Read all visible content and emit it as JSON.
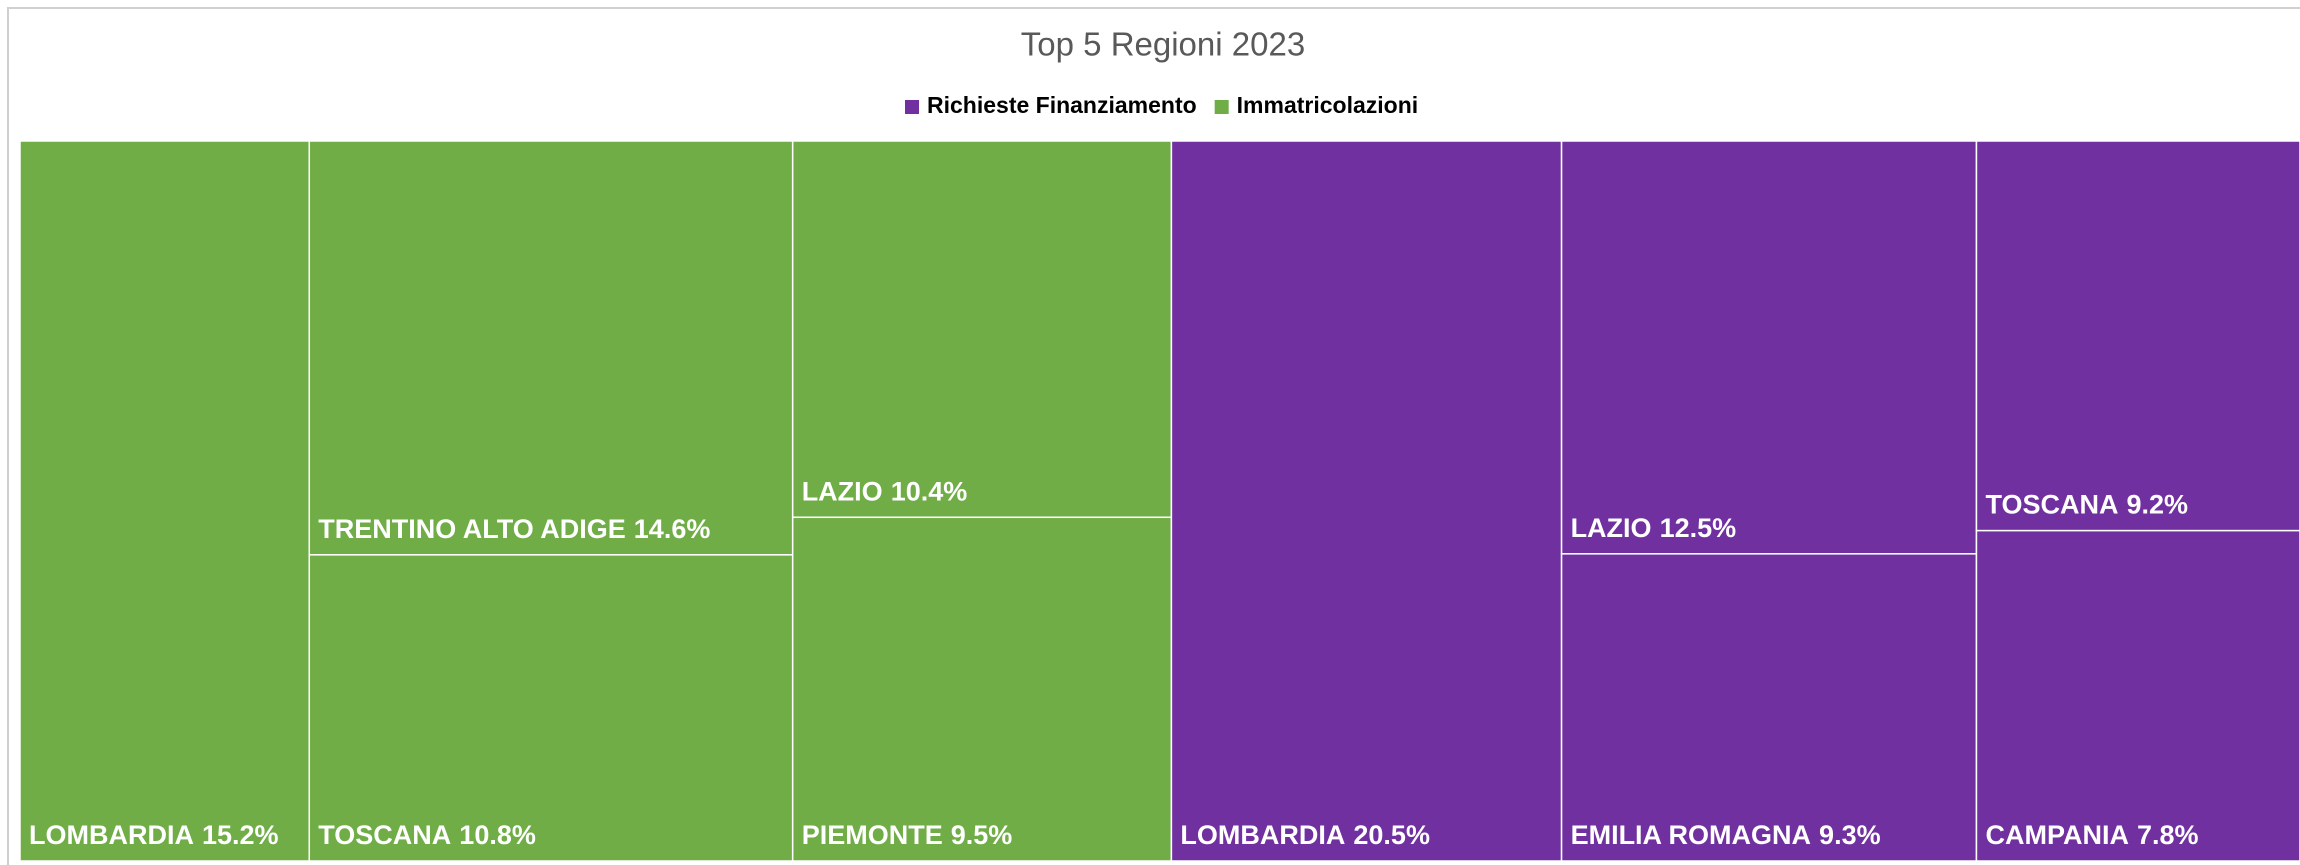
{
  "chart_data": {
    "type": "treemap",
    "title": "Top 5 Regioni 2023",
    "series": [
      {
        "name": "Richieste Finanziamento",
        "color": "#7030a0",
        "categories": [
          "LOMBARDIA",
          "LAZIO",
          "EMILIA ROMAGNA",
          "TOSCANA",
          "CAMPANIA"
        ],
        "values": [
          20.5,
          12.5,
          9.3,
          9.2,
          7.8
        ],
        "value_labels": [
          "20.5%",
          "12.5%",
          "9.3%",
          "9.2%",
          "7.8%"
        ]
      },
      {
        "name": "Immatricolazioni",
        "color": "#70ad47",
        "categories": [
          "LOMBARDIA",
          "TRENTINO ALTO ADIGE",
          "TOSCANA",
          "LAZIO",
          "PIEMONTE"
        ],
        "values": [
          15.2,
          14.6,
          10.8,
          10.4,
          9.5
        ],
        "value_labels": [
          "15.2%",
          "14.6%",
          "10.8%",
          "10.4%",
          "9.5%"
        ]
      }
    ],
    "legend": "top"
  }
}
